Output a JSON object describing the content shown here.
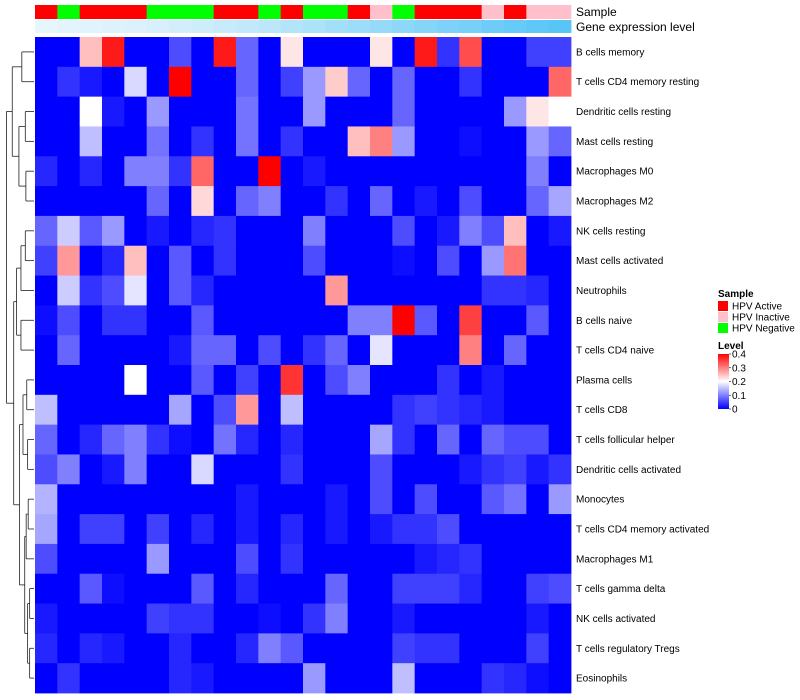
{
  "chart_data": {
    "type": "heatmap",
    "title": "",
    "annotation_track_labels": [
      "Sample",
      "Gene expression level"
    ],
    "columns": 24,
    "row_labels": [
      "B cells memory",
      "T cells CD4 memory resting",
      "Dendritic cells resting",
      "Mast cells resting",
      "Macrophages M0",
      "Macrophages M2",
      "NK cells resting",
      "Mast cells activated",
      "Neutrophils",
      "B cells naive",
      "T cells CD4 naive",
      "Plasma cells",
      "T cells CD8",
      "T cells follicular helper",
      "Dendritic cells activated",
      "Monocytes",
      "T cells CD4 memory activated",
      "Macrophages M1",
      "T cells gamma delta",
      "NK cells activated",
      "T cells regulatory  Tregs",
      "Eosinophils"
    ],
    "sample_annotation": [
      "HPV Active",
      "HPV Negative",
      "HPV Active",
      "HPV Active",
      "HPV Active",
      "HPV Negative",
      "HPV Negative",
      "HPV Negative",
      "HPV Active",
      "HPV Active",
      "HPV Negative",
      "HPV Active",
      "HPV Negative",
      "HPV Negative",
      "HPV Active",
      "HPV Inactive",
      "HPV Negative",
      "HPV Active",
      "HPV Active",
      "HPV Active",
      "HPV Inactive",
      "HPV Active",
      "HPV Inactive",
      "HPV Inactive"
    ],
    "gene_expression_annotation": [
      0.02,
      0.04,
      0.06,
      0.08,
      0.1,
      0.12,
      0.15,
      0.18,
      0.22,
      0.26,
      0.3,
      0.35,
      0.4,
      0.45,
      0.5,
      0.55,
      0.6,
      0.65,
      0.7,
      0.75,
      0.8,
      0.85,
      0.9,
      0.95
    ],
    "values": [
      [
        0,
        0,
        0.25,
        0.38,
        0,
        0,
        0.06,
        0,
        0.38,
        0.08,
        0,
        0.22,
        0,
        0,
        0,
        0.22,
        0,
        0.38,
        0.04,
        0.34,
        0,
        0,
        0.05,
        0.05
      ],
      [
        0,
        0.04,
        0.02,
        0,
        0.17,
        0,
        0.4,
        0,
        0,
        0.08,
        0,
        0.05,
        0.12,
        0.24,
        0.08,
        0,
        0.08,
        0,
        0,
        0.04,
        0,
        0,
        0,
        0.32
      ],
      [
        0,
        0,
        0.2,
        0.02,
        0,
        0.12,
        0,
        0,
        0,
        0.09,
        0,
        0,
        0.12,
        0,
        0,
        0,
        0.08,
        0,
        0,
        0,
        0,
        0.12,
        0.22,
        0.2
      ],
      [
        0,
        0,
        0.15,
        0,
        0,
        0.09,
        0,
        0.04,
        0,
        0.09,
        0,
        0.04,
        0,
        0,
        0.25,
        0.3,
        0.12,
        0,
        0,
        0.01,
        0,
        0,
        0.12,
        0.08
      ],
      [
        0.03,
        0,
        0.03,
        0,
        0.1,
        0.1,
        0.04,
        0.32,
        0,
        0,
        0.4,
        0,
        0.02,
        0,
        0,
        0,
        0,
        0,
        0,
        0,
        0,
        0,
        0.1,
        0
      ],
      [
        0,
        0,
        0,
        0,
        0,
        0.08,
        0,
        0.23,
        0,
        0.08,
        0.1,
        0,
        0,
        0.04,
        0,
        0.08,
        0,
        0.02,
        0,
        0.06,
        0,
        0,
        0.08,
        0.13
      ],
      [
        0.08,
        0.16,
        0.07,
        0.12,
        0,
        0.02,
        0,
        0.03,
        0.04,
        0,
        0,
        0,
        0.1,
        0,
        0,
        0,
        0.06,
        0,
        0.02,
        0.1,
        0.06,
        0.25,
        0,
        0.02
      ],
      [
        0.05,
        0.28,
        0,
        0.03,
        0.25,
        0,
        0.07,
        0,
        0.04,
        0,
        0,
        0,
        0.06,
        0,
        0,
        0,
        0.01,
        0,
        0.06,
        0,
        0.12,
        0.31,
        0,
        0
      ],
      [
        0,
        0.16,
        0.04,
        0.06,
        0.18,
        0,
        0.07,
        0.03,
        0,
        0,
        0,
        0,
        0,
        0.28,
        0,
        0,
        0,
        0,
        0,
        0,
        0.04,
        0.04,
        0.03,
        0
      ],
      [
        0.01,
        0.06,
        0,
        0.04,
        0.04,
        0,
        0,
        0.07,
        0,
        0,
        0,
        0,
        0,
        0,
        0.1,
        0.1,
        0.4,
        0.07,
        0,
        0.35,
        0,
        0,
        0.07,
        0
      ],
      [
        0,
        0.08,
        0,
        0,
        0,
        0,
        0.02,
        0.08,
        0.08,
        0,
        0.06,
        0,
        0.04,
        0.08,
        0,
        0.18,
        0,
        0,
        0,
        0.3,
        0,
        0.08,
        0,
        0
      ],
      [
        0,
        0,
        0,
        0,
        0.2,
        0,
        0,
        0.07,
        0,
        0.05,
        0,
        0.36,
        0,
        0.06,
        0.1,
        0,
        0,
        0,
        0.04,
        0,
        0.02,
        0,
        0,
        0
      ],
      [
        0.15,
        0,
        0,
        0,
        0,
        0,
        0.13,
        0,
        0.06,
        0.28,
        0,
        0.15,
        0,
        0,
        0,
        0,
        0.04,
        0.05,
        0.04,
        0.03,
        0.02,
        0,
        0,
        0
      ],
      [
        0.08,
        0,
        0.03,
        0.08,
        0.1,
        0.04,
        0.01,
        0,
        0.09,
        0.03,
        0,
        0.03,
        0,
        0,
        0,
        0.13,
        0.04,
        0,
        0.08,
        0,
        0.08,
        0.06,
        0.06,
        0
      ],
      [
        0.06,
        0.1,
        0,
        0.02,
        0.1,
        0,
        0,
        0.17,
        0,
        0,
        0,
        0.04,
        0,
        0,
        0,
        0.06,
        0,
        0,
        0,
        0.02,
        0.04,
        0.05,
        0.02,
        0.04
      ],
      [
        0.14,
        0,
        0,
        0,
        0,
        0,
        0,
        0,
        0,
        0.02,
        0,
        0,
        0,
        0.02,
        0,
        0.06,
        0,
        0.06,
        0,
        0,
        0.07,
        0.09,
        0,
        0.12
      ],
      [
        0.13,
        0,
        0.05,
        0.05,
        0,
        0.05,
        0,
        0.03,
        0,
        0.02,
        0,
        0.03,
        0,
        0.02,
        0,
        0.02,
        0.04,
        0.04,
        0.06,
        0,
        0,
        0,
        0,
        0
      ],
      [
        0.06,
        0,
        0,
        0,
        0,
        0.12,
        0,
        0,
        0,
        0.06,
        0,
        0.04,
        0,
        0,
        0,
        0,
        0,
        0.02,
        0.03,
        0.04,
        0,
        0,
        0,
        0
      ],
      [
        0,
        0,
        0.07,
        0.01,
        0,
        0,
        0,
        0.07,
        0,
        0.03,
        0,
        0,
        0,
        0.08,
        0,
        0,
        0.05,
        0.05,
        0.05,
        0.03,
        0,
        0,
        0.05,
        0.06
      ],
      [
        0.02,
        0,
        0,
        0,
        0,
        0.05,
        0.04,
        0.04,
        0,
        0,
        0.01,
        0,
        0.04,
        0.1,
        0,
        0,
        0.02,
        0,
        0,
        0,
        0,
        0,
        0.02,
        0
      ],
      [
        0.03,
        0,
        0.03,
        0.02,
        0,
        0,
        0.03,
        0,
        0,
        0.03,
        0.1,
        0.07,
        0,
        0,
        0,
        0,
        0.05,
        0.04,
        0.04,
        0,
        0,
        0,
        0.05,
        0
      ],
      [
        0,
        0.04,
        0,
        0,
        0,
        0,
        0.03,
        0.02,
        0,
        0,
        0,
        0,
        0.12,
        0,
        0,
        0,
        0.15,
        0,
        0,
        0,
        0.04,
        0.03,
        0.01,
        0
      ]
    ],
    "color_scale": {
      "min": 0,
      "mid": 0.2,
      "max": 0.4,
      "low_color": "#0000ff",
      "mid_color": "#ffffff",
      "high_color": "#ff0000"
    },
    "legend": {
      "sample_title": "Sample",
      "sample_entries": [
        {
          "label": "HPV Active",
          "color": "#ff0000"
        },
        {
          "label": "HPV Inactive",
          "color": "#ffc0cb"
        },
        {
          "label": "HPV Negative",
          "color": "#00ff00"
        }
      ],
      "level_title": "Level",
      "level_ticks": [
        "0.4",
        "0.3",
        "0.2",
        "0.1",
        "0"
      ],
      "level_tick_values": [
        0.4,
        0.3,
        0.2,
        0.1,
        0
      ]
    },
    "gene_expression_colors": {
      "low": "#eaf6fc",
      "high": "#4fc3f7"
    },
    "dendrogram": "rows clustered (left dendrogram)"
  }
}
